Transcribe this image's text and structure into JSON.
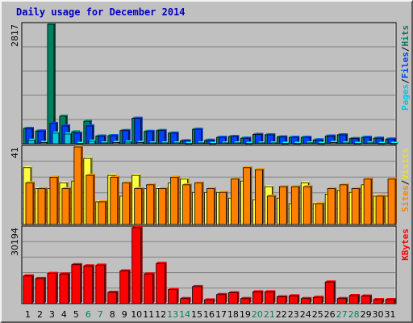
{
  "chart_data": {
    "type": "bar",
    "title": "Daily usage for December 2014",
    "categories": [
      "1",
      "2",
      "3",
      "4",
      "5",
      "6",
      "7",
      "8",
      "9",
      "10",
      "11",
      "12",
      "13",
      "14",
      "15",
      "16",
      "17",
      "18",
      "19",
      "20",
      "21",
      "22",
      "23",
      "24",
      "25",
      "26",
      "27",
      "28",
      "29",
      "30",
      "31"
    ],
    "weekend_days": [
      "6",
      "7",
      "13",
      "14",
      "20",
      "21",
      "27",
      "28"
    ],
    "panels": [
      {
        "name": "hits_files_pages",
        "ymax": 2817,
        "tick_label": "2817",
        "axis_labels": [
          {
            "text": "Pages",
            "color": "#00c8e0"
          },
          {
            "text": "/",
            "color": "#000000"
          },
          {
            "text": "Files",
            "color": "#0040ff"
          },
          {
            "text": "/",
            "color": "#000000"
          },
          {
            "text": "Hits",
            "color": "#008060"
          }
        ],
        "series": [
          {
            "name": "Hits",
            "color": "#008060",
            "values": [
              360,
              300,
              2817,
              650,
              280,
              530,
              180,
              190,
              310,
              600,
              290,
              310,
              250,
              70,
              340,
              80,
              150,
              170,
              130,
              220,
              210,
              160,
              150,
              150,
              90,
              180,
              210,
              120,
              150,
              130,
              110
            ]
          },
          {
            "name": "Files",
            "color": "#0040ff",
            "values": [
              360,
              300,
              480,
              420,
              250,
              420,
              180,
              190,
              310,
              600,
              290,
              310,
              250,
              70,
              340,
              80,
              150,
              170,
              130,
              220,
              210,
              160,
              150,
              150,
              90,
              180,
              210,
              120,
              150,
              130,
              110
            ]
          },
          {
            "name": "Pages",
            "color": "#00c8e0",
            "values": [
              80,
              30,
              250,
              230,
              10,
              60,
              20,
              30,
              40,
              30,
              20,
              20,
              20,
              10,
              20,
              10,
              20,
              20,
              10,
              20,
              20,
              10,
              10,
              20,
              10,
              30,
              20,
              10,
              20,
              10,
              10
            ]
          }
        ]
      },
      {
        "name": "visits_sites",
        "ymax": 41,
        "tick_label": "41",
        "axis_labels": [
          {
            "text": "Sites",
            "color": "#ff8000"
          },
          {
            "text": "/",
            "color": "#000000"
          },
          {
            "text": "Visits",
            "color": "#e8e020"
          }
        ],
        "series": [
          {
            "name": "Visits",
            "color": "#ffff40",
            "values": [
              30,
              19,
              19,
              22,
              23,
              35,
              12,
              26,
              15,
              26,
              19,
              19,
              22,
              24,
              17,
              17,
              17,
              14,
              23,
              13,
              20,
              14,
              11,
              22,
              11,
              16,
              18,
              17,
              21,
              15,
              15
            ]
          },
          {
            "name": "Sites",
            "color": "#ff8000",
            "values": [
              22,
              19,
              25,
              19,
              41,
              26,
              12,
              25,
              22,
              19,
              21,
              19,
              25,
              21,
              22,
              19,
              17,
              24,
              30,
              29,
              15,
              20,
              20,
              20,
              11,
              19,
              21,
              19,
              24,
              15,
              24
            ]
          }
        ]
      },
      {
        "name": "kbytes",
        "ymax": 30194,
        "tick_label": "30194",
        "axis_labels": [
          {
            "text": "KBytes",
            "color": "#ff0000"
          }
        ],
        "series": [
          {
            "name": "KBytes",
            "color": "#ff0000",
            "values": [
              11000,
              10000,
              12000,
              11800,
              15500,
              15000,
              15300,
              4500,
              13000,
              30194,
              11800,
              16000,
              5600,
              2000,
              6800,
              1500,
              3600,
              4300,
              2000,
              4700,
              4700,
              2700,
              3100,
              2000,
              2500,
              8600,
              2000,
              3200,
              3000,
              1600,
              1600
            ]
          }
        ]
      }
    ]
  }
}
